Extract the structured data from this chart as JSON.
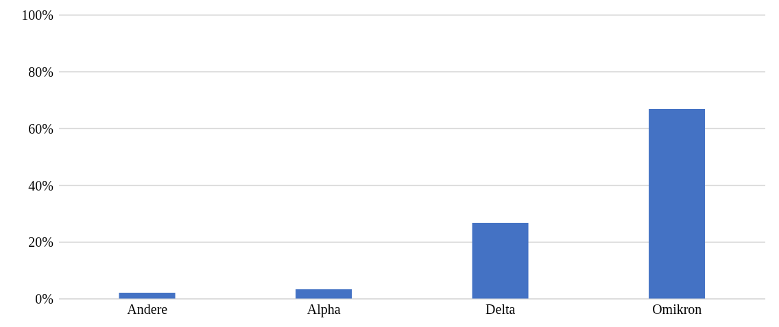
{
  "chart_data": {
    "type": "bar",
    "categories": [
      "Andere",
      "Alpha",
      "Delta",
      "Omikron"
    ],
    "values": [
      2.2,
      3.4,
      26.8,
      66.9
    ],
    "color": "#4472c4",
    "ylim": [
      0,
      100
    ],
    "yticks": [
      {
        "value": 0,
        "label": "0%"
      },
      {
        "value": 20,
        "label": "20%"
      },
      {
        "value": 40,
        "label": "40%"
      },
      {
        "value": 60,
        "label": "60%"
      },
      {
        "value": 80,
        "label": "80%"
      },
      {
        "value": 100,
        "label": "100%"
      }
    ],
    "grid": "y"
  }
}
